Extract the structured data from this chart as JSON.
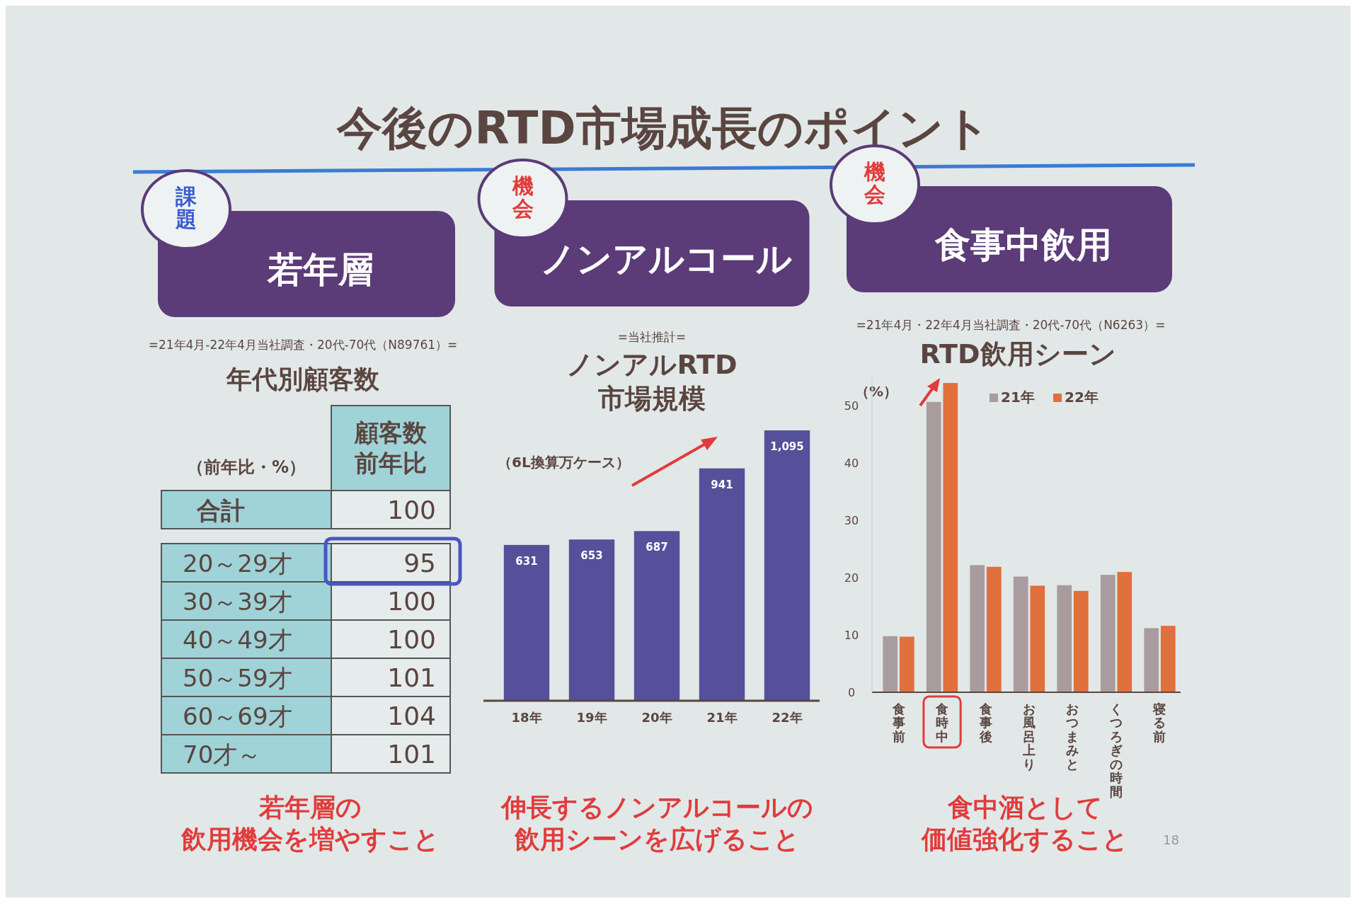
{
  "chart_data": [
    {
      "type": "other",
      "title": "年代別顧客数",
      "subtitle": "=21年4月-22年4月当社調査・20代-70代（N89761）=",
      "ylabel": "顧客数前年比",
      "data_labels": true,
      "categories": [
        "合計",
        "20～29才",
        "30～39才",
        "40～49才",
        "50～59才",
        "60～69才",
        "70才～"
      ],
      "values": [
        100,
        95,
        100,
        100,
        101,
        104,
        101
      ],
      "annotations": [
        "今後のRTD市場成長のポイント",
        "課題",
        "若年層",
        "（前年比・%）",
        "若年層の",
        "飲用機会を増やすこと"
      ]
    },
    {
      "type": "bar",
      "title": "ノンアルRTD\n市場規模",
      "subtitle": "=当社推計=",
      "ylabel": "（6L換算万ケース）",
      "categories": [
        "18年",
        "19年",
        "20年",
        "21年",
        "22年"
      ],
      "values": [
        631,
        653,
        687,
        941,
        1095
      ],
      "color": "#55509a",
      "value_labels": [
        "631",
        "653",
        "687",
        "941",
        "1,095"
      ],
      "annotations": [
        "機会",
        "ノンアルコール",
        "伸長するノンアルコールの",
        "飲用シーンを広げること"
      ]
    },
    {
      "type": "bar",
      "title": "RTD飲用シーン",
      "subtitle": "=21年4月・22年4月当社調査・20代-70代（N6263）=",
      "ylabel": "（%）",
      "categories": [
        "食事前",
        "食時中",
        "食事後",
        "お風呂上り",
        "おつまみと",
        "くつろぎの時間",
        "寝る前"
      ],
      "series": [
        {
          "name": "21年",
          "color": "#a99c9e",
          "values": [
            9.8,
            50.7,
            22.2,
            20.2,
            18.7,
            20.5,
            11.2
          ]
        },
        {
          "name": "22年",
          "color": "#e0703c",
          "values": [
            9.7,
            54,
            21.9,
            18.6,
            17.7,
            21,
            11.6
          ]
        }
      ],
      "ylim": [
        0,
        55
      ],
      "yticks": [
        0,
        10,
        20,
        30,
        40,
        50
      ],
      "legend": "top right",
      "annotations": [
        "機会",
        "食事中飲用",
        "食中酒として",
        "価値強化すること",
        "18"
      ]
    }
  ]
}
